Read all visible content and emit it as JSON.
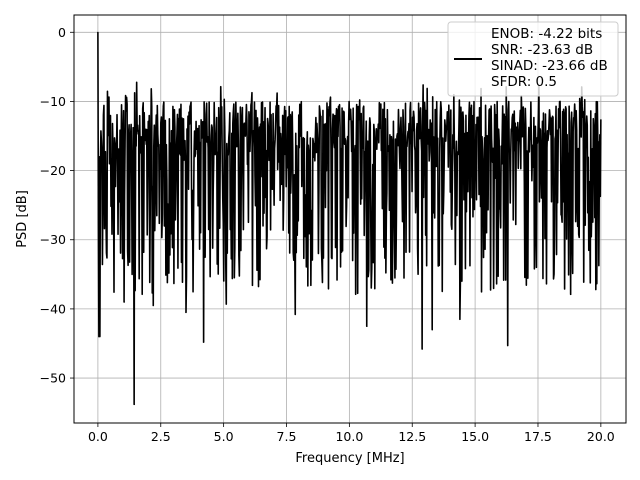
{
  "chart_data": {
    "type": "line",
    "title": "",
    "xlabel": "Frequency [MHz]",
    "ylabel": "PSD [dB]",
    "xlim": [
      -0.95,
      21.0
    ],
    "ylim": [
      -56.5,
      2.5
    ],
    "xticks": [
      0.0,
      2.5,
      5.0,
      7.5,
      10.0,
      12.5,
      15.0,
      17.5,
      20.0
    ],
    "xtick_labels": [
      "0.0",
      "2.5",
      "5.0",
      "7.5",
      "10.0",
      "12.5",
      "15.0",
      "17.5",
      "20.0"
    ],
    "yticks": [
      0,
      -10,
      -20,
      -30,
      -40,
      -50
    ],
    "ytick_labels": [
      "0",
      "−10",
      "−20",
      "−30",
      "−40",
      "−50"
    ],
    "grid": true,
    "legend_position": "top-right",
    "legend_lines": [
      "ENOB: -4.22 bits",
      "SNR: -23.63 dB",
      "SINAD: -23.66 dB",
      "SFDR: 0.5"
    ],
    "series": [
      {
        "color": "#000000",
        "x_start": 0.0,
        "x_end": 20.0,
        "num_points": 1000,
        "noise_floor_range": [
          -35,
          -10
        ],
        "values_summary": "dense noise spectrum fluctuating mostly between -35 dB and -10 dB, peak 0 dB at 0 MHz",
        "spikes": [
          {
            "x": 0.0,
            "y": 0.0
          },
          {
            "x": 0.08,
            "y": -44.0
          },
          {
            "x": 1.05,
            "y": -39.0
          },
          {
            "x": 1.45,
            "y": -53.8
          },
          {
            "x": 2.2,
            "y": -39.5
          },
          {
            "x": 3.5,
            "y": -40.5
          },
          {
            "x": 4.2,
            "y": -44.8
          },
          {
            "x": 5.1,
            "y": -39.3
          },
          {
            "x": 7.85,
            "y": -40.8
          },
          {
            "x": 10.7,
            "y": -42.5
          },
          {
            "x": 12.9,
            "y": -45.8
          },
          {
            "x": 13.3,
            "y": -43.0
          },
          {
            "x": 14.4,
            "y": -41.5
          },
          {
            "x": 16.3,
            "y": -45.3
          },
          {
            "x": 17.7,
            "y": -35.6
          },
          {
            "x": 18.8,
            "y": -37.9
          },
          {
            "x": 19.8,
            "y": -37.2
          }
        ]
      }
    ]
  },
  "colors": {
    "line": "#000000",
    "grid": "#b0b0b0",
    "legend_border": "#cccccc"
  }
}
